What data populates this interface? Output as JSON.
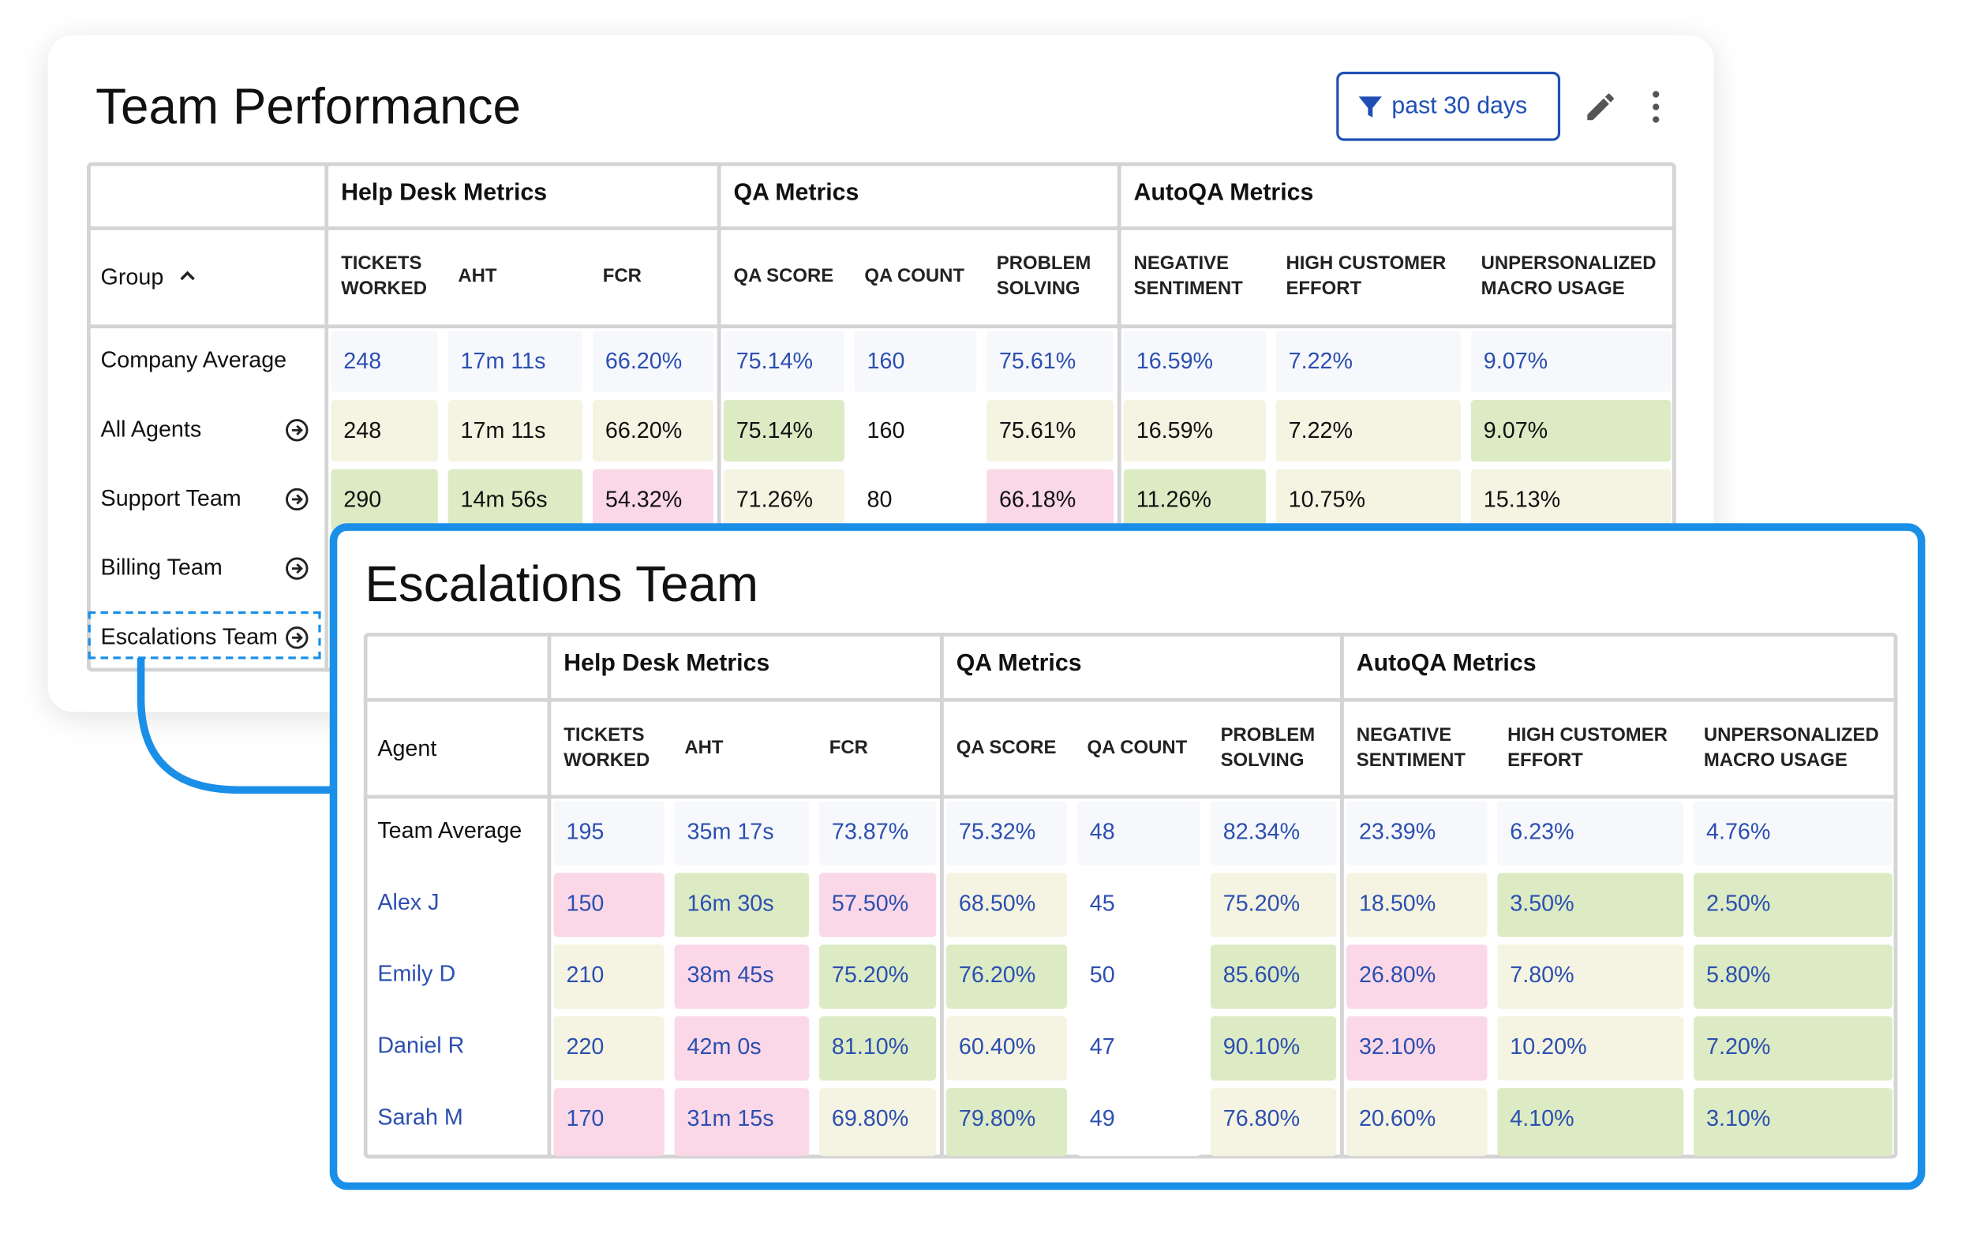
{
  "back_panel": {
    "title": "Team Performance",
    "filter_button": "past 30 days",
    "table": {
      "first_column_header": "Group",
      "group_headers": [
        "Help Desk Metrics",
        "QA Metrics",
        "AutoQA Metrics"
      ],
      "columns": [
        "TICKETS\nWORKED",
        "AHT",
        "FCR",
        "QA SCORE",
        "QA COUNT",
        "PROBLEM\nSOLVING",
        "NEGATIVE\nSENTIMENT",
        "HIGH CUSTOMER\nEFFORT",
        "UNPERSONALIZED\nMACRO USAGE"
      ],
      "rows": [
        {
          "label": "Company Average",
          "values": [
            "248",
            "17m 11s",
            "66.20%",
            "75.14%",
            "160",
            "75.61%",
            "16.59%",
            "7.22%",
            "9.07%"
          ],
          "colors": [
            "#f6f8fc",
            "#f6f8fc",
            "#f6f8fc",
            "#f6f8fc",
            "#f6f8fc",
            "#f6f8fc",
            "#f6f8fc",
            "#f6f8fc",
            "#f6f8fc"
          ]
        },
        {
          "label": "All Agents",
          "values": [
            "248",
            "17m 11s",
            "66.20%",
            "75.14%",
            "160",
            "75.61%",
            "16.59%",
            "7.22%",
            "9.07%"
          ],
          "colors": [
            "#f5f4e2",
            "#f5f4e2",
            "#f5f4e2",
            "#dcebc4",
            "#ffffff",
            "#f5f4e2",
            "#f5f4e2",
            "#f5f4e2",
            "#dcebc4"
          ]
        },
        {
          "label": "Support Team",
          "values": [
            "290",
            "14m 56s",
            "54.32%",
            "71.26%",
            "80",
            "66.18%",
            "11.26%",
            "10.75%",
            "15.13%"
          ],
          "colors": [
            "#dcebc4",
            "#dcebc4",
            "#fbd8e8",
            "#f5f4e2",
            "#ffffff",
            "#fbd8e8",
            "#dcebc4",
            "#f5f4e2",
            "#f5f4e2"
          ]
        },
        {
          "label": "Billing Team"
        },
        {
          "label": "Escalations Team"
        }
      ]
    }
  },
  "front_panel": {
    "title": "Escalations Team",
    "table": {
      "first_column_header": "Agent",
      "group_headers": [
        "Help Desk Metrics",
        "QA Metrics",
        "AutoQA Metrics"
      ],
      "columns": [
        "TICKETS\nWORKED",
        "AHT",
        "FCR",
        "QA SCORE",
        "QA COUNT",
        "PROBLEM\nSOLVING",
        "NEGATIVE\nSENTIMENT",
        "HIGH CUSTOMER\nEFFORT",
        "UNPERSONALIZED\nMACRO USAGE"
      ],
      "rows": [
        {
          "label": "Team Average",
          "values": [
            "195",
            "35m 17s",
            "73.87%",
            "75.32%",
            "48",
            "82.34%",
            "23.39%",
            "6.23%",
            "4.76%"
          ],
          "colors": [
            "#f6f8fc",
            "#f6f8fc",
            "#f6f8fc",
            "#f6f8fc",
            "#f6f8fc",
            "#f6f8fc",
            "#f6f8fc",
            "#f6f8fc",
            "#f6f8fc"
          ]
        },
        {
          "label": "Alex J",
          "values": [
            "150",
            "16m 30s",
            "57.50%",
            "68.50%",
            "45",
            "75.20%",
            "18.50%",
            "3.50%",
            "2.50%"
          ],
          "colors": [
            "#fbd8e8",
            "#dcebc4",
            "#fbd8e8",
            "#f5f4e2",
            "#ffffff",
            "#f5f4e2",
            "#f5f4e2",
            "#dcebc4",
            "#dcebc4"
          ]
        },
        {
          "label": "Emily D",
          "values": [
            "210",
            "38m 45s",
            "75.20%",
            "76.20%",
            "50",
            "85.60%",
            "26.80%",
            "7.80%",
            "5.80%"
          ],
          "colors": [
            "#f5f4e2",
            "#fbd8e8",
            "#dcebc4",
            "#dcebc4",
            "#ffffff",
            "#dcebc4",
            "#fbd8e8",
            "#f5f4e2",
            "#dcebc4"
          ]
        },
        {
          "label": "Daniel R",
          "values": [
            "220",
            "42m 0s",
            "81.10%",
            "60.40%",
            "47",
            "90.10%",
            "32.10%",
            "10.20%",
            "7.20%"
          ],
          "colors": [
            "#f5f4e2",
            "#fbd8e8",
            "#dcebc4",
            "#f5f4e2",
            "#ffffff",
            "#dcebc4",
            "#fbd8e8",
            "#f5f4e2",
            "#dcebc4"
          ]
        },
        {
          "label": "Sarah M",
          "values": [
            "170",
            "31m 15s",
            "69.80%",
            "79.80%",
            "49",
            "76.80%",
            "20.60%",
            "4.10%",
            "3.10%"
          ],
          "colors": [
            "#fbd8e8",
            "#fbd8e8",
            "#f5f4e2",
            "#dcebc4",
            "#ffffff",
            "#f5f4e2",
            "#f5f4e2",
            "#dcebc4",
            "#dcebc4"
          ]
        }
      ]
    }
  }
}
